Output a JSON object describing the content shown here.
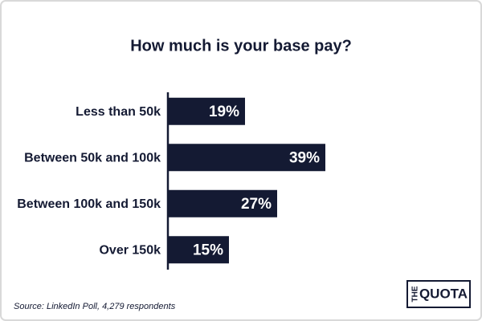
{
  "chart_data": {
    "type": "hbar",
    "title": "How much is your base pay?",
    "categories": [
      "Less than 50k",
      "Between 50k and 100k",
      "Between 100k and 150k",
      "Over 150k"
    ],
    "values": [
      19,
      39,
      27,
      15
    ],
    "value_labels": [
      "19%",
      "39%",
      "27%",
      "15%"
    ],
    "color": "#141a33",
    "source": "Source: LinkedIn Poll, 4,279 respondents"
  },
  "logo": {
    "prefix": "THE",
    "name": "QUOTA"
  }
}
